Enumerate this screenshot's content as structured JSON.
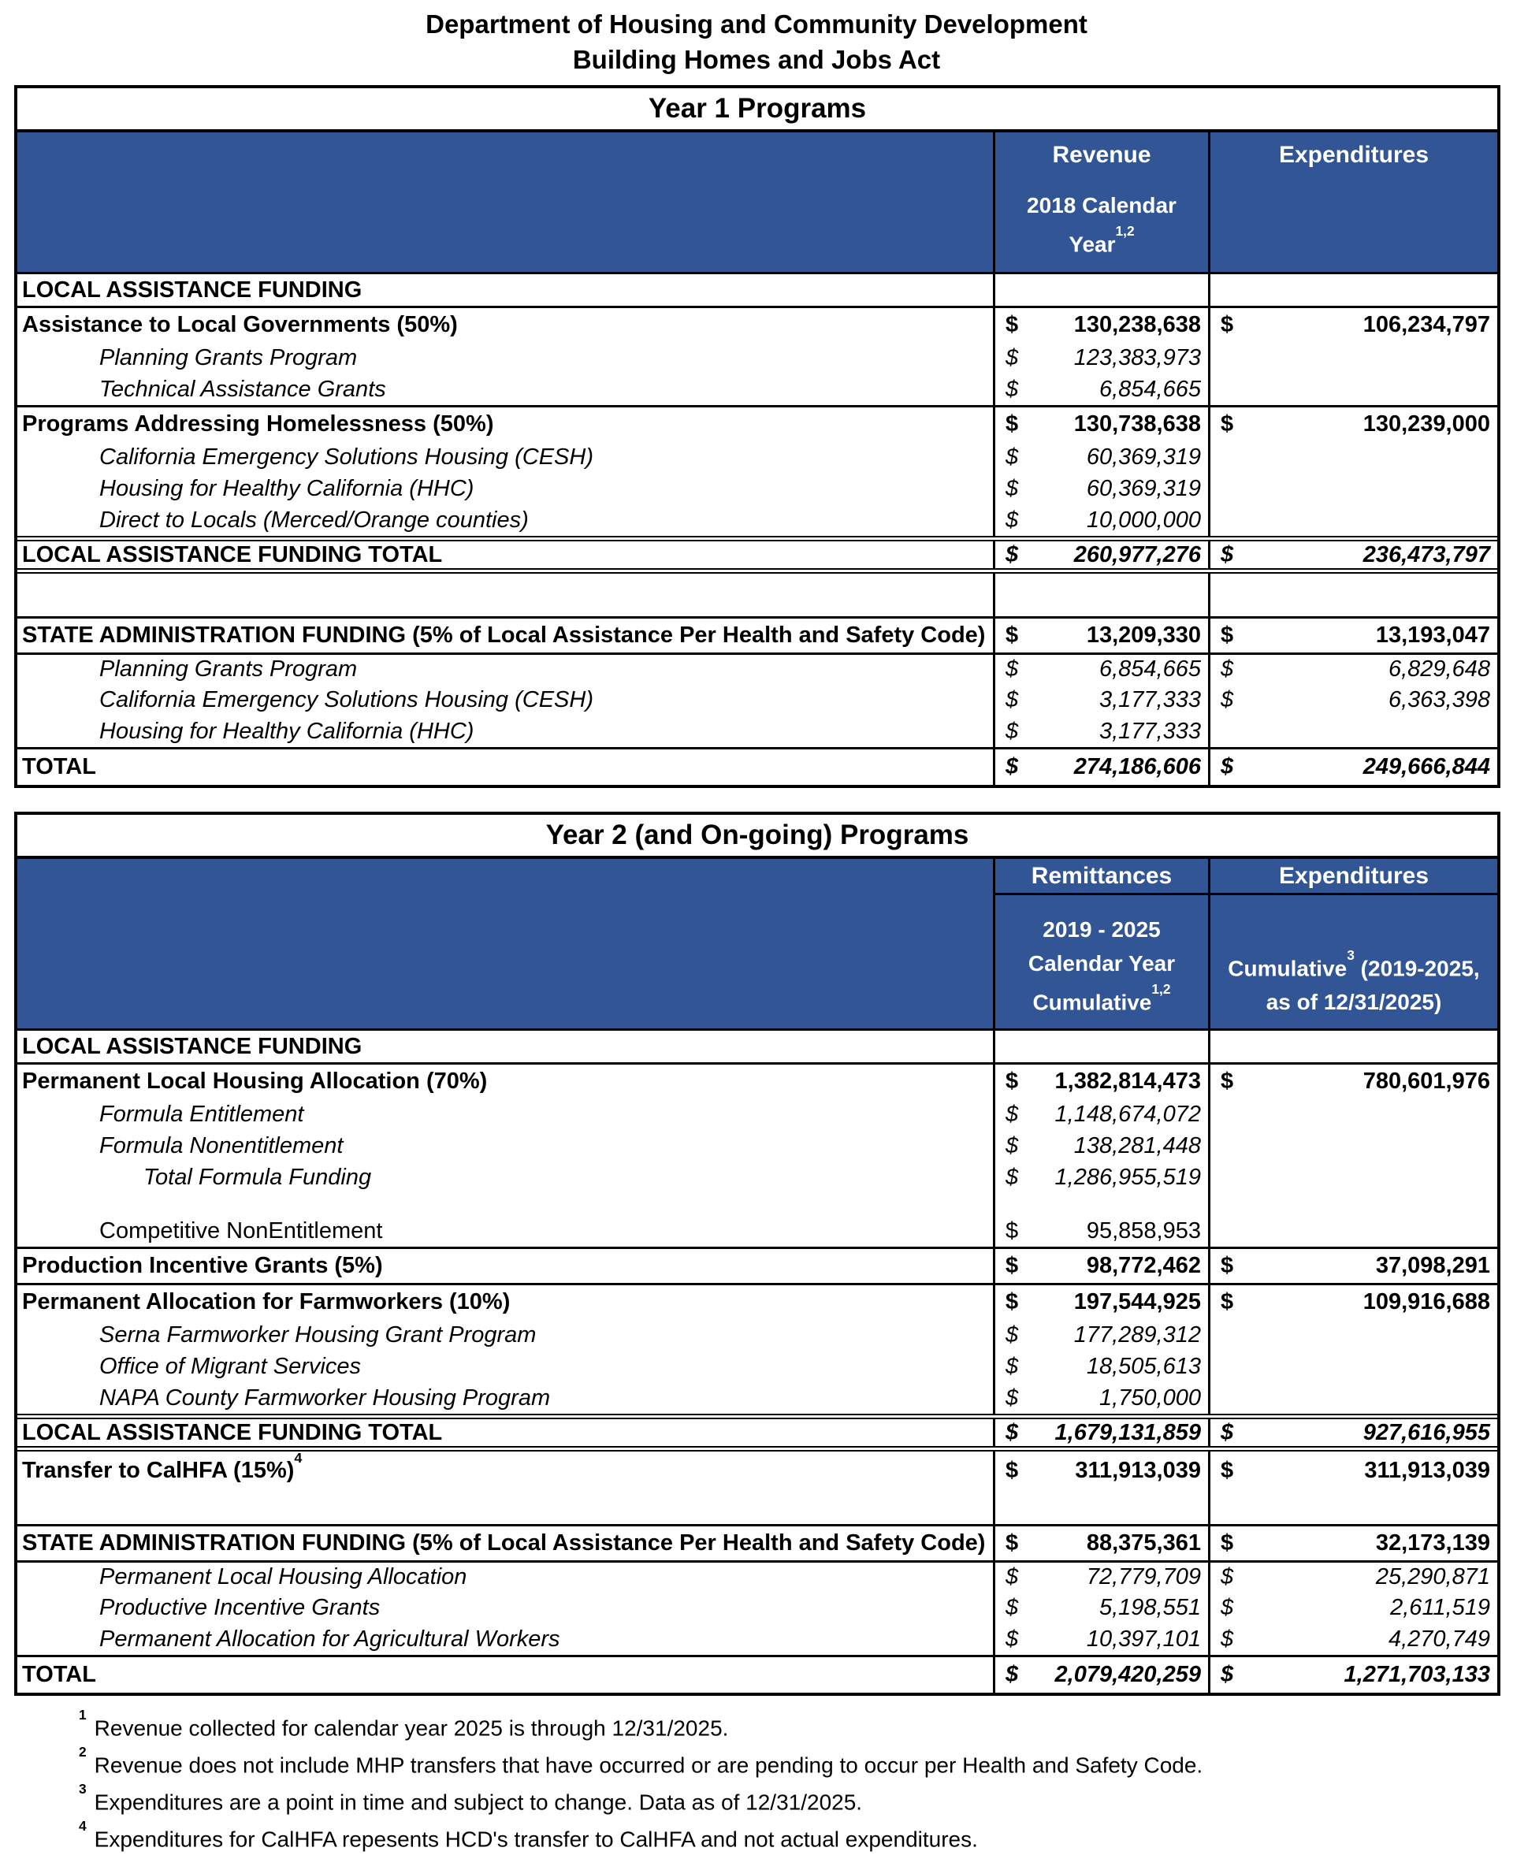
{
  "colors": {
    "header_bg": "#315595",
    "header_text": "#ffffff",
    "border": "#000000"
  },
  "title": {
    "line1": "Department of Housing and Community Development",
    "line2": "Building Homes and Jobs Act"
  },
  "year1": {
    "table_title": "Year 1 Programs",
    "col1_label": "Revenue",
    "col2_label": "Expenditures",
    "col1_sub_line1": "2018 Calendar",
    "col1_sub_line2": "Year",
    "col1_sub_sup": "1,2",
    "rows": [
      {
        "type": "section",
        "label": "LOCAL ASSISTANCE FUNDING",
        "v1": "",
        "v2": "",
        "cls": ""
      },
      {
        "type": "parent",
        "label": "Assistance to Local Governments (50%)",
        "v1": "130,238,638",
        "v2": "106,234,797",
        "cls": "bt"
      },
      {
        "type": "child",
        "label": "Planning Grants Program",
        "v1": "123,383,973",
        "v2": "",
        "cls": ""
      },
      {
        "type": "child",
        "label": "Technical Assistance Grants",
        "v1": "6,854,665",
        "v2": "",
        "cls": ""
      },
      {
        "type": "parent",
        "label": "Programs Addressing Homelessness (50%)",
        "v1": "130,738,638",
        "v2": "130,239,000",
        "cls": "bt"
      },
      {
        "type": "child",
        "label": "California Emergency Solutions Housing (CESH)",
        "v1": "60,369,319",
        "v2": "",
        "cls": ""
      },
      {
        "type": "child",
        "label": "Housing for Healthy California (HHC)",
        "v1": "60,369,319",
        "v2": "",
        "cls": ""
      },
      {
        "type": "child",
        "label": "Direct to Locals (Merced/Orange counties)",
        "v1": "10,000,000",
        "v2": "",
        "cls": ""
      },
      {
        "type": "total",
        "label": "LOCAL ASSISTANCE FUNDING TOTAL",
        "v1": "260,977,276",
        "v2": "236,473,797",
        "cls": "btd bbd"
      },
      {
        "type": "spacer",
        "label": "",
        "v1": "",
        "v2": "",
        "cls": ""
      },
      {
        "type": "parent",
        "label": "STATE ADMINISTRATION FUNDING (5% of Local Assistance Per Health and Safety Code)",
        "v1": "13,209,330",
        "v2": "13,193,047",
        "cls": "bt"
      },
      {
        "type": "child",
        "label": "Planning Grants Program",
        "v1": "6,854,665",
        "v2": "6,829,648",
        "cls": "bt"
      },
      {
        "type": "child",
        "label": "California Emergency Solutions Housing (CESH)",
        "v1": "3,177,333",
        "v2": "6,363,398",
        "cls": ""
      },
      {
        "type": "child",
        "label": "Housing for Healthy California (HHC)",
        "v1": "3,177,333",
        "v2": "",
        "cls": ""
      },
      {
        "type": "total",
        "label": "TOTAL",
        "v1": "274,186,606",
        "v2": "249,666,844",
        "cls": "bt"
      }
    ]
  },
  "year2": {
    "table_title": "Year 2 (and On-going) Programs",
    "col1_label": "Remittances",
    "col2_label": "Expenditures",
    "col1_sub_line1": "2019 - 2025",
    "col1_sub_line2": "Calendar Year",
    "col1_sub_line3": "Cumulative",
    "col1_sub_sup": "1,2",
    "col2_sub_word": "Cumulative",
    "col2_sub_sup": "3",
    "col2_sub_rest": " (2019-2025,",
    "col2_sub_line2": "as of 12/31/2025)",
    "rows": [
      {
        "type": "section",
        "label": "LOCAL ASSISTANCE FUNDING",
        "v1": "",
        "v2": "",
        "cls": ""
      },
      {
        "type": "parent",
        "label": "Permanent Local Housing Allocation (70%)",
        "v1": "1,382,814,473",
        "v2": "780,601,976",
        "cls": "bt"
      },
      {
        "type": "child",
        "label": "Formula Entitlement",
        "v1": "1,148,674,072",
        "v2": "",
        "cls": ""
      },
      {
        "type": "child",
        "label": "Formula Nonentitlement",
        "v1": "138,281,448",
        "v2": "",
        "cls": ""
      },
      {
        "type": "child2",
        "label": "Total Formula Funding",
        "v1": "1,286,955,519",
        "v2": "",
        "cls": ""
      },
      {
        "type": "gap",
        "label": "",
        "v1": "",
        "v2": "",
        "cls": ""
      },
      {
        "type": "plain",
        "label": "Competitive NonEntitlement",
        "v1": "95,858,953",
        "v2": "",
        "cls": ""
      },
      {
        "type": "parent",
        "label": "Production Incentive Grants (5%)",
        "v1": "98,772,462",
        "v2": "37,098,291",
        "cls": "bt"
      },
      {
        "type": "parent",
        "label": "Permanent Allocation for Farmworkers (10%)",
        "v1": "197,544,925",
        "v2": "109,916,688",
        "cls": "bt"
      },
      {
        "type": "child",
        "label": "Serna Farmworker Housing Grant Program",
        "v1": "177,289,312",
        "v2": "",
        "cls": ""
      },
      {
        "type": "child",
        "label": "Office of Migrant Services",
        "v1": "18,505,613",
        "v2": "",
        "cls": ""
      },
      {
        "type": "child",
        "label": "NAPA County Farmworker Housing Program",
        "v1": "1,750,000",
        "v2": "",
        "cls": ""
      },
      {
        "type": "total",
        "label": "LOCAL ASSISTANCE FUNDING TOTAL",
        "v1": "1,679,131,859",
        "v2": "927,616,955",
        "cls": "btd bbd"
      },
      {
        "type": "tall",
        "label": "Transfer to CalHFA (15%)",
        "sup": "4",
        "v1": "311,913,039",
        "v2": "311,913,039",
        "cls": ""
      },
      {
        "type": "parent",
        "label": "STATE ADMINISTRATION FUNDING (5% of Local Assistance Per Health and Safety Code)",
        "v1": "88,375,361",
        "v2": "32,173,139",
        "cls": "bt"
      },
      {
        "type": "child",
        "label": "Permanent Local Housing Allocation",
        "v1": "72,779,709",
        "v2": "25,290,871",
        "cls": "bt"
      },
      {
        "type": "child",
        "label": "Productive Incentive Grants",
        "v1": "5,198,551",
        "v2": "2,611,519",
        "cls": ""
      },
      {
        "type": "child",
        "label": "Permanent Allocation for Agricultural Workers",
        "v1": "10,397,101",
        "v2": "4,270,749",
        "cls": ""
      },
      {
        "type": "total",
        "label": "TOTAL",
        "v1": "2,079,420,259",
        "v2": "1,271,703,133",
        "cls": "bt"
      }
    ]
  },
  "currency_symbol": "$",
  "footnotes": [
    {
      "sup": "1",
      "text": "Revenue collected for calendar year 2025 is through 12/31/2025."
    },
    {
      "sup": "2",
      "text": "Revenue does not include MHP transfers that have occurred or are pending to occur per Health and Safety Code."
    },
    {
      "sup": "3",
      "text": "Expenditures are a point in time and subject to change.  Data as of 12/31/2025."
    },
    {
      "sup": "4",
      "text": "Expenditures for CalHFA repesents HCD's transfer to CalHFA and not actual expenditures."
    }
  ]
}
